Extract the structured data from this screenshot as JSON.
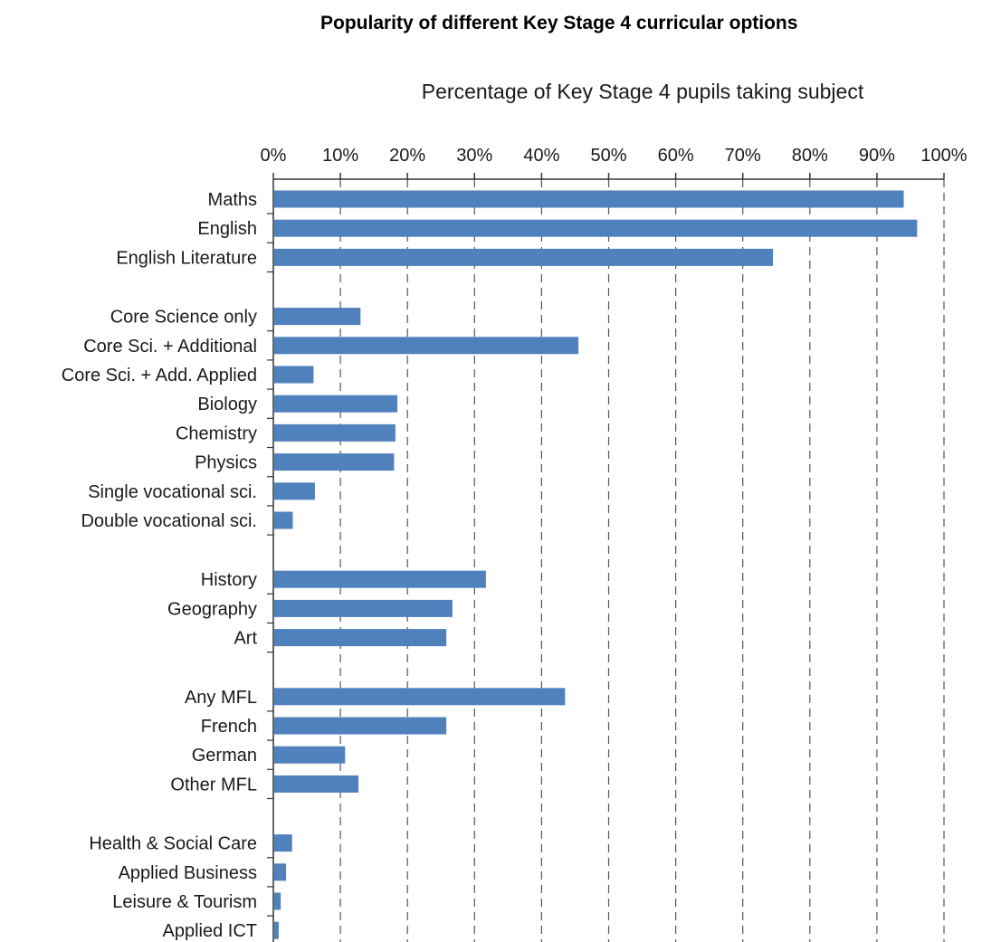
{
  "chart_data": {
    "type": "bar",
    "orientation": "horizontal",
    "title": "Popularity of different Key Stage 4 curricular options",
    "xlabel": "Percentage of Key Stage 4 pupils taking subject",
    "ylabel": "",
    "xlim": [
      0,
      100
    ],
    "x_ticks": [
      "0%",
      "10%",
      "20%",
      "30%",
      "40%",
      "50%",
      "60%",
      "70%",
      "80%",
      "90%",
      "100%"
    ],
    "grid": "vertical dashed",
    "axis_position": "top",
    "bar_color": "#4f81bd",
    "groups": [
      {
        "categories": [
          "Maths",
          "English",
          "English Literature"
        ],
        "values": [
          94,
          96,
          74.5
        ]
      },
      {
        "categories": [
          "Core Science only",
          "Core Sci. + Additional",
          "Core Sci. + Add. Applied",
          "Biology",
          "Chemistry",
          "Physics",
          "Single vocational sci.",
          "Double vocational sci."
        ],
        "values": [
          13,
          45.5,
          6,
          18.5,
          18.2,
          18,
          6.2,
          2.9
        ]
      },
      {
        "categories": [
          "History",
          "Geography",
          "Art"
        ],
        "values": [
          31.7,
          26.7,
          25.8
        ]
      },
      {
        "categories": [
          "Any MFL",
          "French",
          "German",
          "Other MFL"
        ],
        "values": [
          43.5,
          25.8,
          10.7,
          12.7
        ]
      },
      {
        "categories": [
          "Health & Social Care",
          "Applied Business",
          "Leisure & Tourism",
          "Applied ICT"
        ],
        "values": [
          2.8,
          1.9,
          1.1,
          0.8
        ]
      }
    ]
  }
}
